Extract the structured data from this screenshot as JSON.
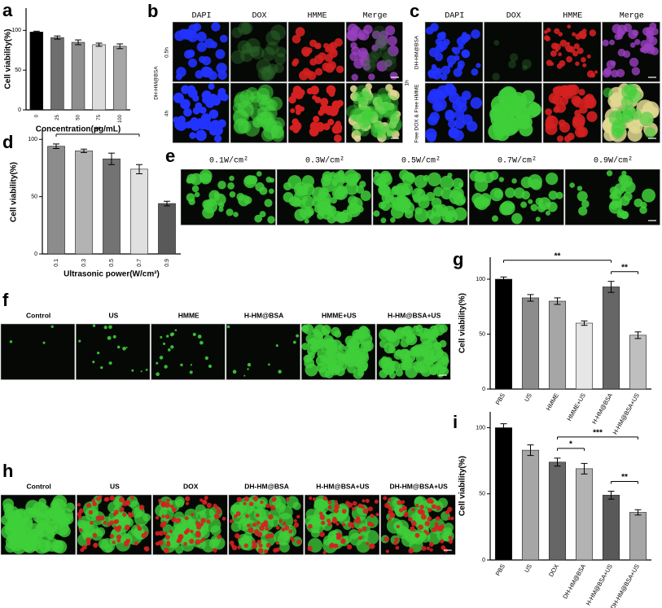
{
  "chart_data": [
    {
      "panel": "a",
      "type": "bar",
      "ylabel": "Cell viability(%)",
      "xlabel": "Concentration(μg/mL)",
      "categories": [
        "0",
        "25",
        "50",
        "75",
        "100"
      ],
      "values": [
        98,
        91,
        85,
        82,
        80
      ],
      "errors": [
        1,
        2,
        3,
        2,
        3
      ],
      "colors": [
        "#000000",
        "#6e6e6e",
        "#8f8f8f",
        "#dcdcdc",
        "#a6a6a6"
      ],
      "ylim": [
        0,
        128
      ],
      "yticks": [
        0,
        50,
        100
      ],
      "annotations": []
    },
    {
      "panel": "d",
      "type": "bar",
      "ylabel": "Cell viability(%)",
      "xlabel": "Ultrasonic power(W/cm²)",
      "categories": [
        "0.1",
        "0.3",
        "0.5",
        "0.7",
        "0.9"
      ],
      "values": [
        94,
        90,
        83,
        74,
        44
      ],
      "errors": [
        2,
        1.5,
        5,
        4,
        2
      ],
      "colors": [
        "#8c8c8c",
        "#b3b3b3",
        "#737373",
        "#e0e0e0",
        "#595959"
      ],
      "ylim": [
        0,
        108
      ],
      "yticks": [
        0,
        50,
        100
      ],
      "annotations": [
        {
          "text": "**",
          "from": "0.1",
          "to": "0.7"
        }
      ]
    },
    {
      "panel": "g",
      "type": "bar",
      "ylabel": "Cell viability(%)",
      "categories": [
        "PBS",
        "US",
        "HMME",
        "HMME+US",
        "H-HM@BSA",
        "H-HM@BSA+US"
      ],
      "values": [
        100,
        83,
        80,
        60,
        93,
        49
      ],
      "errors": [
        2,
        3,
        3,
        2,
        5,
        3
      ],
      "colors": [
        "#000000",
        "#8c8c8c",
        "#a6a6a6",
        "#e6e6e6",
        "#666666",
        "#bfbfbf"
      ],
      "ylim": [
        0,
        120
      ],
      "yticks": [
        0,
        50,
        100
      ],
      "annotations": [
        {
          "text": "**",
          "from": "PBS",
          "to": "H-HM@BSA"
        },
        {
          "text": "**",
          "from": "H-HM@BSA",
          "to": "H-HM@BSA+US"
        }
      ]
    },
    {
      "panel": "i",
      "type": "bar",
      "ylabel": "Cell viability(%)",
      "categories": [
        "PBS",
        "US",
        "DOX",
        "DH-HM@BSA",
        "H-HM@BSA+US",
        "DH-HM@BSA+US"
      ],
      "values": [
        100,
        83,
        74,
        69,
        49,
        36
      ],
      "errors": [
        3,
        4,
        3,
        4,
        3,
        2
      ],
      "colors": [
        "#000000",
        "#a6a6a6",
        "#666666",
        "#b3b3b3",
        "#595959",
        "#a6a6a6"
      ],
      "ylim": [
        0,
        112
      ],
      "yticks": [
        0,
        50,
        100
      ],
      "annotations": [
        {
          "text": "*",
          "from": "DOX",
          "to": "DH-HM@BSA"
        },
        {
          "text": "***",
          "from": "DOX",
          "to": "DH-HM@BSA+US"
        },
        {
          "text": "**",
          "from": "H-HM@BSA+US",
          "to": "DH-HM@BSA+US"
        }
      ]
    }
  ],
  "image_panels": [
    {
      "panel": "b",
      "group_label": "DH-HM@BSA",
      "row_labels": [
        "0.5h",
        "4h"
      ],
      "column_headers": [
        "DAPI",
        "DOX",
        "HMME",
        "Merge"
      ]
    },
    {
      "panel": "c",
      "group_label": "1h",
      "row_labels": [
        "DH-HM@BSA",
        "Free DOX & Free HMME"
      ],
      "column_headers": [
        "DAPI",
        "DOX",
        "HMME",
        "Merge"
      ]
    },
    {
      "panel": "e",
      "column_headers": [
        "0.1W/cm²",
        "0.3W/cm²",
        "0.5W/cm²",
        "0.7W/cm²",
        "0.9W/cm²"
      ]
    },
    {
      "panel": "f",
      "column_headers": [
        "Control",
        "US",
        "HMME",
        "H-HM@BSA",
        "HMME+US",
        "H-HM@BSA+US"
      ]
    },
    {
      "panel": "h",
      "column_headers": [
        "Control",
        "US",
        "DOX",
        "DH-HM@BSA",
        "H-HM@BSA+US",
        "DH-HM@BSA+US"
      ]
    }
  ]
}
